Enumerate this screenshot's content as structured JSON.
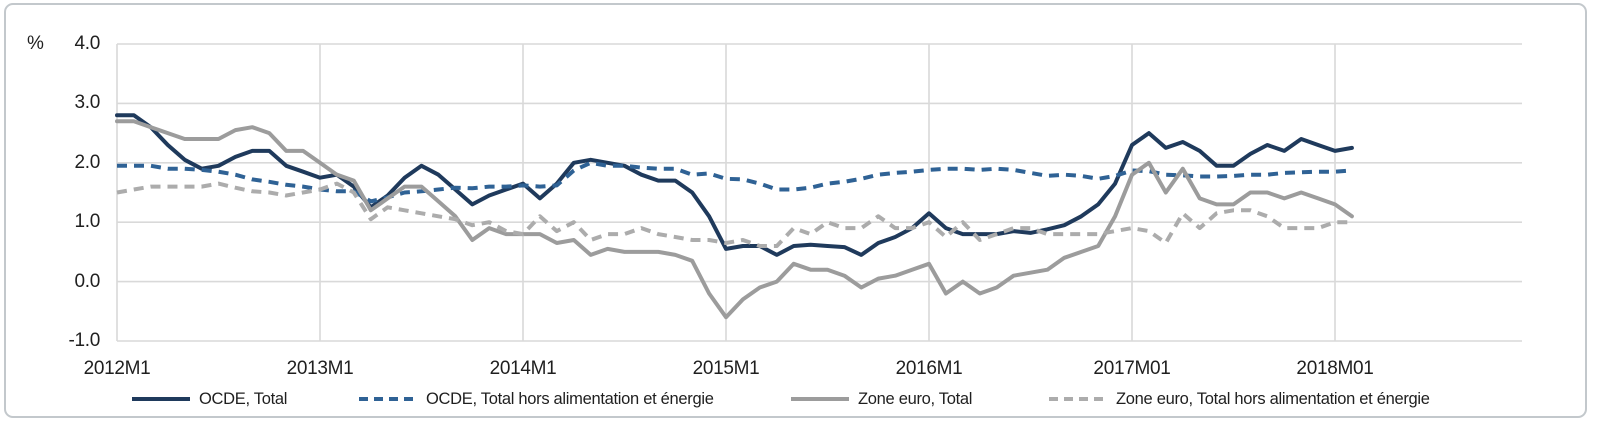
{
  "chart_data": {
    "type": "line",
    "title": "",
    "unit_label": "%",
    "x_axis": {
      "start": "2012M1",
      "end": "2018M2",
      "frequency": "monthly",
      "tick_labels": [
        "2012M1",
        "2013M1",
        "2014M1",
        "2015M1",
        "2016M1",
        "2017M01",
        "2018M01"
      ],
      "months_per_tick": 12
    },
    "y_axis": {
      "tick_labels": [
        "4.0",
        "3.0",
        "2.0",
        "1.0",
        "0.0",
        "-1.0"
      ],
      "tick_values": [
        4.0,
        3.0,
        2.0,
        1.0,
        0.0,
        -1.0
      ],
      "ylim": [
        -1.0,
        4.0
      ]
    },
    "grid": "on",
    "legend_position": "bottom",
    "colors": {
      "gridline": "#d9d9d9",
      "frame_border": "#c3c8cc",
      "text": "#1f1f1f"
    },
    "series": [
      {
        "name": "OCDE, Total",
        "color": "#1f3a5c",
        "dashed": false,
        "values": [
          2.8,
          2.8,
          2.6,
          2.3,
          2.05,
          1.9,
          1.95,
          2.1,
          2.2,
          2.2,
          1.95,
          1.85,
          1.75,
          1.8,
          1.6,
          1.25,
          1.45,
          1.75,
          1.95,
          1.8,
          1.55,
          1.3,
          1.45,
          1.55,
          1.65,
          1.4,
          1.65,
          2.0,
          2.05,
          2.0,
          1.95,
          1.8,
          1.7,
          1.7,
          1.5,
          1.1,
          0.55,
          0.6,
          0.6,
          0.45,
          0.6,
          0.62,
          0.6,
          0.58,
          0.45,
          0.65,
          0.75,
          0.9,
          1.15,
          0.9,
          0.8,
          0.8,
          0.8,
          0.85,
          0.82,
          0.88,
          0.95,
          1.1,
          1.3,
          1.65,
          2.3,
          2.5,
          2.25,
          2.35,
          2.2,
          1.95,
          1.95,
          2.15,
          2.3,
          2.2,
          2.4,
          2.3,
          2.2,
          2.25
        ]
      },
      {
        "name": "OCDE, Total hors alimentation et énergie",
        "color": "#2f6295",
        "dashed": true,
        "values": [
          1.95,
          1.95,
          1.95,
          1.9,
          1.9,
          1.88,
          1.85,
          1.8,
          1.72,
          1.68,
          1.63,
          1.6,
          1.55,
          1.52,
          1.52,
          1.35,
          1.42,
          1.5,
          1.52,
          1.55,
          1.58,
          1.57,
          1.6,
          1.6,
          1.62,
          1.6,
          1.62,
          1.87,
          2.0,
          1.95,
          1.95,
          1.92,
          1.9,
          1.9,
          1.8,
          1.82,
          1.73,
          1.72,
          1.65,
          1.55,
          1.55,
          1.58,
          1.65,
          1.68,
          1.73,
          1.8,
          1.83,
          1.85,
          1.88,
          1.9,
          1.9,
          1.88,
          1.9,
          1.88,
          1.83,
          1.78,
          1.8,
          1.78,
          1.73,
          1.78,
          1.87,
          1.86,
          1.8,
          1.79,
          1.77,
          1.77,
          1.78,
          1.8,
          1.8,
          1.83,
          1.84,
          1.85,
          1.85,
          1.87
        ]
      },
      {
        "name": "Zone euro, Total",
        "color": "#9c9c9c",
        "dashed": false,
        "values": [
          2.7,
          2.7,
          2.6,
          2.5,
          2.4,
          2.4,
          2.4,
          2.55,
          2.6,
          2.5,
          2.2,
          2.2,
          2.0,
          1.8,
          1.7,
          1.2,
          1.4,
          1.6,
          1.6,
          1.35,
          1.1,
          0.7,
          0.9,
          0.8,
          0.8,
          0.8,
          0.65,
          0.7,
          0.45,
          0.55,
          0.5,
          0.5,
          0.5,
          0.45,
          0.35,
          -0.2,
          -0.6,
          -0.3,
          -0.1,
          0.0,
          0.3,
          0.2,
          0.2,
          0.1,
          -0.1,
          0.05,
          0.1,
          0.2,
          0.3,
          -0.2,
          0.0,
          -0.2,
          -0.1,
          0.1,
          0.15,
          0.2,
          0.4,
          0.5,
          0.6,
          1.1,
          1.8,
          2.0,
          1.5,
          1.9,
          1.4,
          1.3,
          1.3,
          1.5,
          1.5,
          1.4,
          1.5,
          1.4,
          1.3,
          1.1
        ]
      },
      {
        "name": "Zone euro, Total hors alimentation et énergie",
        "color": "#acacac",
        "dashed": true,
        "values": [
          1.5,
          1.55,
          1.6,
          1.6,
          1.6,
          1.6,
          1.65,
          1.58,
          1.52,
          1.5,
          1.45,
          1.5,
          1.55,
          1.65,
          1.5,
          1.05,
          1.25,
          1.2,
          1.15,
          1.1,
          1.05,
          0.95,
          1.0,
          0.85,
          0.8,
          1.1,
          0.85,
          1.0,
          0.7,
          0.8,
          0.8,
          0.9,
          0.8,
          0.75,
          0.7,
          0.7,
          0.65,
          0.7,
          0.6,
          0.6,
          0.9,
          0.8,
          1.0,
          0.9,
          0.9,
          1.1,
          0.9,
          0.9,
          1.0,
          0.75,
          1.0,
          0.7,
          0.8,
          0.9,
          0.9,
          0.8,
          0.8,
          0.8,
          0.8,
          0.85,
          0.9,
          0.85,
          0.65,
          1.15,
          0.9,
          1.15,
          1.2,
          1.2,
          1.1,
          0.9,
          0.9,
          0.9,
          1.0,
          1.0
        ]
      }
    ]
  }
}
